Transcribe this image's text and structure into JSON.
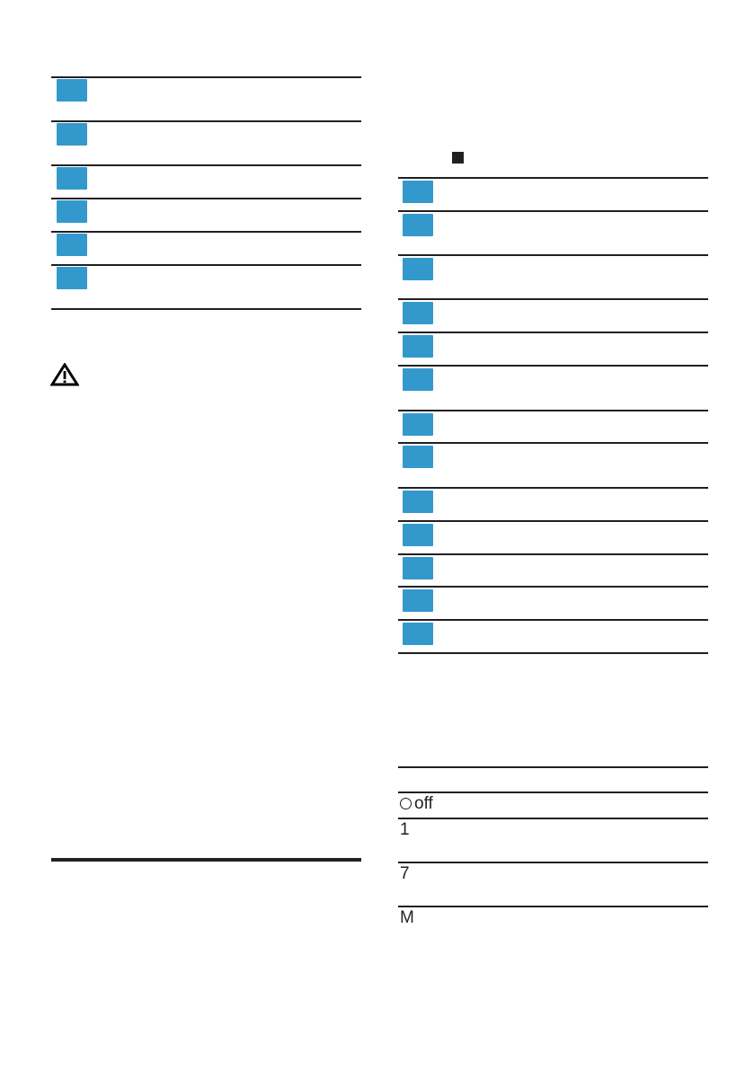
{
  "colors": {
    "key_box": "#3399cc",
    "rule": "#231f20"
  },
  "icons": {
    "warning": "warning-triangle-icon",
    "stop": "stop-square-icon"
  },
  "settings_table": {
    "rows": [
      {
        "symbol": "off",
        "circle": true
      },
      {
        "symbol": "1"
      },
      {
        "symbol": "7"
      },
      {
        "symbol": "M"
      }
    ]
  }
}
